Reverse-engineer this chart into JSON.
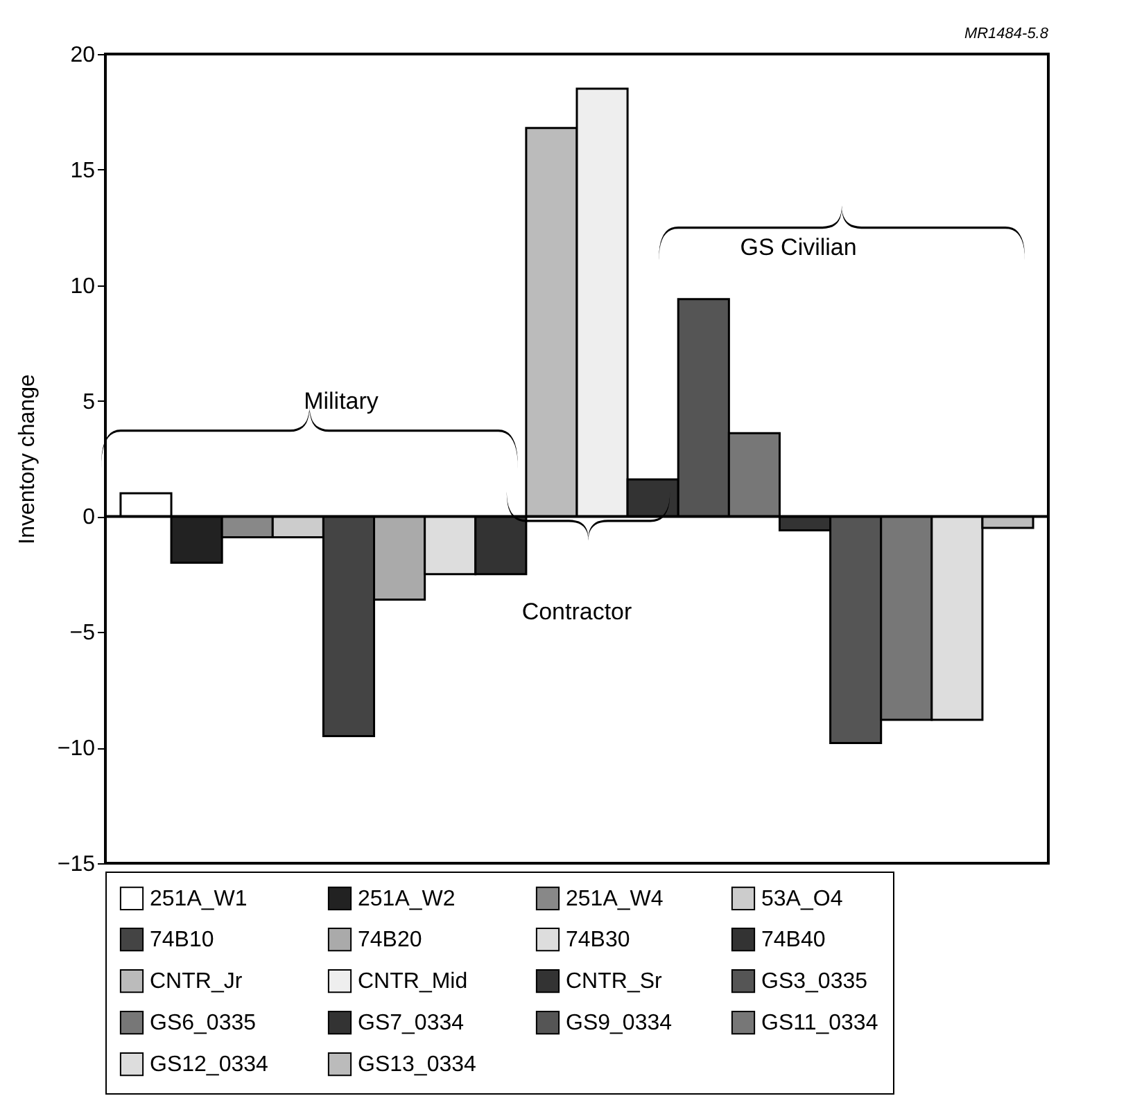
{
  "chart_data": {
    "type": "bar",
    "stacked": true,
    "ylabel": "Inventory change",
    "categories": [
      null,
      null,
      null,
      null,
      null,
      null,
      null,
      null,
      null,
      null,
      null,
      null,
      null,
      null,
      null,
      null,
      null,
      null
    ],
    "series": [
      {
        "name": "251A_W1",
        "color": "#ffffff",
        "values": [
          1.0,
          null,
          null,
          null,
          null,
          null,
          null,
          null,
          null,
          null,
          null,
          null,
          null,
          null,
          null,
          null,
          null,
          null
        ]
      },
      {
        "name": "251A_W2",
        "color": "#222222",
        "values": [
          null,
          -2.0,
          null,
          null,
          null,
          null,
          null,
          null,
          null,
          null,
          null,
          null,
          null,
          null,
          null,
          null,
          null,
          null
        ]
      },
      {
        "name": "251A_W4",
        "color": "#888888",
        "values": [
          null,
          null,
          -0.9,
          null,
          null,
          null,
          null,
          null,
          null,
          null,
          null,
          null,
          null,
          null,
          null,
          null,
          null,
          null
        ]
      },
      {
        "name": "53A_O4",
        "color": "#cccccc",
        "values": [
          null,
          null,
          null,
          -0.9,
          null,
          null,
          null,
          null,
          null,
          null,
          null,
          null,
          null,
          null,
          null,
          null,
          null,
          null
        ]
      },
      {
        "name": "74B10",
        "color": "#444444",
        "values": [
          null,
          null,
          null,
          null,
          -9.5,
          null,
          null,
          null,
          null,
          null,
          null,
          null,
          null,
          null,
          null,
          null,
          null,
          null
        ]
      },
      {
        "name": "74B20",
        "color": "#aaaaaa",
        "values": [
          null,
          null,
          null,
          null,
          null,
          -3.6,
          null,
          null,
          null,
          null,
          null,
          null,
          null,
          null,
          null,
          null,
          null,
          null
        ]
      },
      {
        "name": "74B30",
        "color": "#dddddd",
        "values": [
          null,
          null,
          null,
          null,
          null,
          null,
          -2.5,
          null,
          null,
          null,
          null,
          null,
          null,
          null,
          null,
          null,
          null,
          null
        ]
      },
      {
        "name": "74B40",
        "color": "#333333",
        "values": [
          null,
          null,
          null,
          null,
          null,
          null,
          null,
          -2.5,
          null,
          null,
          null,
          null,
          null,
          null,
          null,
          null,
          null,
          null
        ]
      },
      {
        "name": "CNTR_Jr",
        "color": "#bbbbbb",
        "values": [
          null,
          null,
          null,
          null,
          null,
          null,
          null,
          null,
          16.8,
          null,
          null,
          null,
          null,
          null,
          null,
          null,
          null,
          null
        ]
      },
      {
        "name": "CNTR_Mid",
        "color": "#eeeeee",
        "values": [
          null,
          null,
          null,
          null,
          null,
          null,
          null,
          null,
          null,
          18.5,
          null,
          null,
          null,
          null,
          null,
          null,
          null,
          null
        ]
      },
      {
        "name": "CNTR_Sr",
        "color": "#333333",
        "values": [
          null,
          null,
          null,
          null,
          null,
          null,
          null,
          null,
          null,
          null,
          1.6,
          null,
          null,
          null,
          null,
          null,
          null,
          null
        ]
      },
      {
        "name": "GS3_0335",
        "color": "#555555",
        "values": [
          null,
          null,
          null,
          null,
          null,
          null,
          null,
          null,
          null,
          null,
          null,
          9.4,
          null,
          null,
          null,
          null,
          null,
          null
        ]
      },
      {
        "name": "GS6_0335",
        "color": "#777777",
        "values": [
          null,
          null,
          null,
          null,
          null,
          null,
          null,
          null,
          null,
          null,
          null,
          null,
          3.6,
          null,
          null,
          null,
          null,
          null
        ]
      },
      {
        "name": "GS7_0334",
        "color": "#333333",
        "values": [
          null,
          null,
          null,
          null,
          null,
          null,
          null,
          null,
          null,
          null,
          null,
          null,
          null,
          -0.6,
          null,
          null,
          null,
          null
        ]
      },
      {
        "name": "GS9_0334",
        "color": "#555555",
        "values": [
          null,
          null,
          null,
          null,
          null,
          null,
          null,
          null,
          null,
          null,
          null,
          null,
          null,
          null,
          -9.8,
          null,
          null,
          null
        ]
      },
      {
        "name": "GS11_0334",
        "color": "#777777",
        "values": [
          null,
          null,
          null,
          null,
          null,
          null,
          null,
          null,
          null,
          null,
          null,
          null,
          null,
          null,
          null,
          -8.8,
          null,
          null
        ]
      },
      {
        "name": "GS12_0334",
        "color": "#dddddd",
        "values": [
          null,
          null,
          null,
          null,
          null,
          null,
          null,
          null,
          null,
          null,
          null,
          null,
          null,
          null,
          null,
          null,
          -8.8,
          null
        ]
      },
      {
        "name": "GS13_0334",
        "color": "#bbbbbb",
        "values": [
          null,
          null,
          null,
          null,
          null,
          null,
          null,
          null,
          null,
          null,
          null,
          null,
          null,
          null,
          null,
          null,
          null,
          -0.5
        ]
      }
    ],
    "ylim": [
      -15,
      20
    ],
    "yticks": [
      -15,
      -10,
      -5,
      0,
      5,
      10,
      15,
      20
    ],
    "ref_lines": [
      {
        "axis": "y",
        "value": 0
      }
    ],
    "annotations": [
      "Military",
      "Contractor",
      "GS Civilian",
      "MR1484-5.8"
    ],
    "legend": "bottom",
    "tick_labels": "y",
    "grid": false
  }
}
